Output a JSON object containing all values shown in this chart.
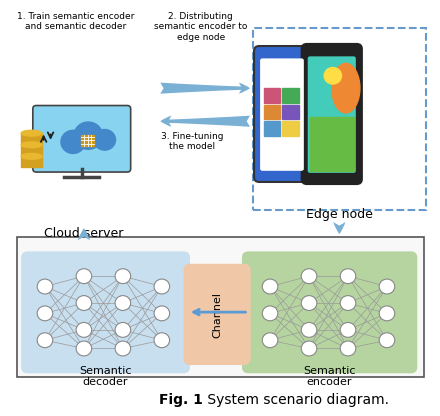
{
  "fig_width": 4.4,
  "fig_height": 4.16,
  "dpi": 100,
  "bg_color": "#ffffff",
  "caption_bold": "Fig. 1",
  "caption_normal": " System scenario diagram.",
  "caption_fontsize": 10,
  "top_section": {
    "cloud_label": "Cloud server",
    "edge_label": "Edge node",
    "arrow1_label": "2. Distributing\nsemantic encoder to\nedge node",
    "arrow2_label": "3. Fine-tuning\nthe model",
    "step1_label": "1. Train semantic encoder\nand semantic decoder",
    "arrow_color": "#7ab0d4",
    "label_fontsize": 7
  },
  "bottom_section": {
    "decoder_bg": "#c8dff0",
    "encoder_bg": "#b5d4a0",
    "channel_bg": "#f0c8a8",
    "decoder_label": "Semantic\ndecoder",
    "encoder_label": "Semantic\nencoder",
    "channel_label": "Channel",
    "arrow_color": "#5b9bd5",
    "label_fontsize": 8
  }
}
